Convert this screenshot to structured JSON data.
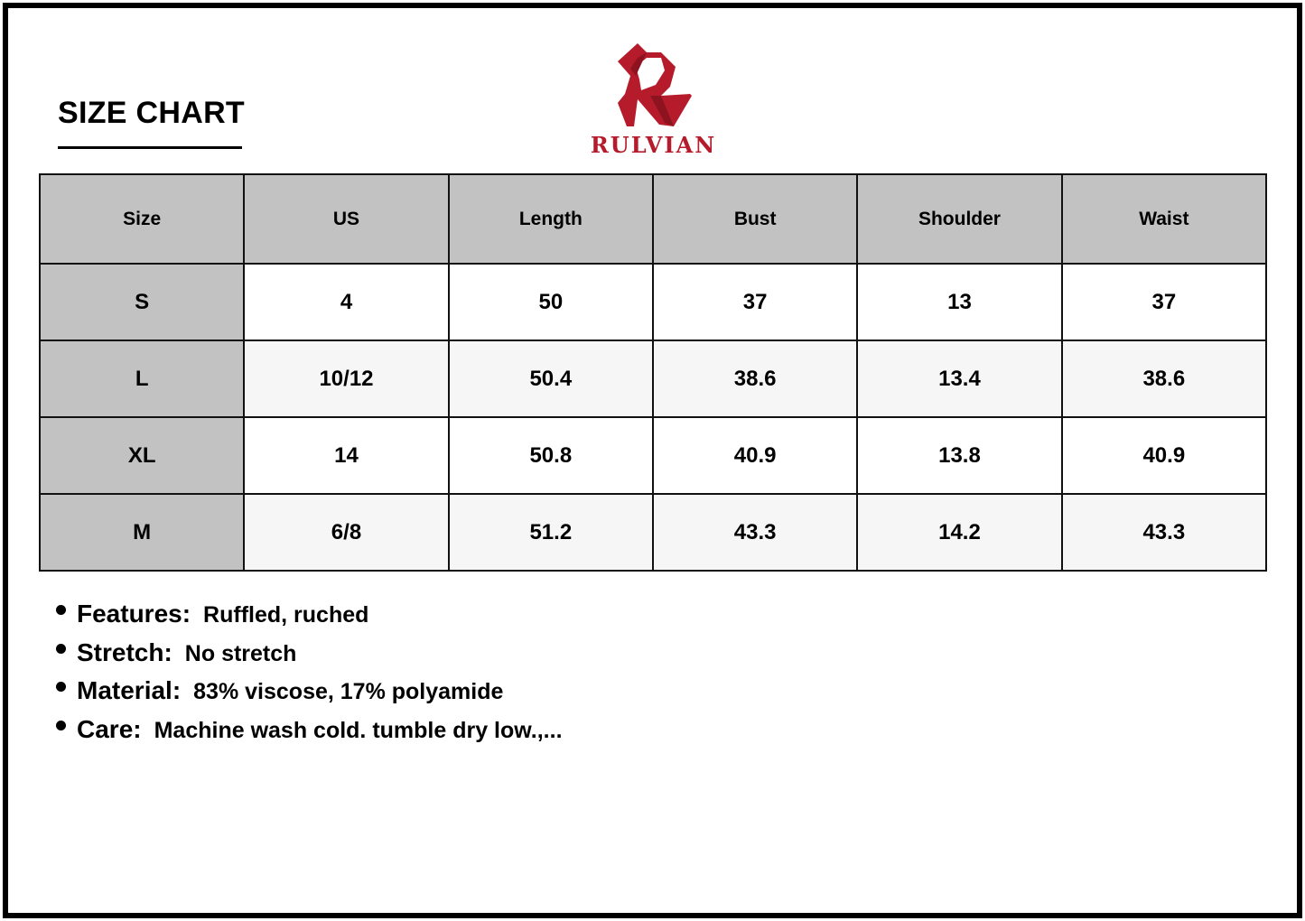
{
  "title": "SIZE CHART",
  "brand": {
    "name": "RULVIAN",
    "color": "#b51b2b"
  },
  "table": {
    "headers": [
      "Size",
      "US",
      "Length",
      "Bust",
      "Shoulder",
      "Waist"
    ],
    "rows": [
      [
        "S",
        "4",
        "50",
        "37",
        "13",
        "37"
      ],
      [
        "L",
        "10/12",
        "50.4",
        "38.6",
        "13.4",
        "38.6"
      ],
      [
        "XL",
        "14",
        "50.8",
        "40.9",
        "13.8",
        "40.9"
      ],
      [
        "M",
        "6/8",
        "51.2",
        "43.3",
        "14.2",
        "43.3"
      ]
    ]
  },
  "notes": [
    {
      "label": "Features:",
      "value": "Ruffled, ruched"
    },
    {
      "label": "Stretch:",
      "value": "No stretch"
    },
    {
      "label": "Material:",
      "value": "83% viscose, 17% polyamide"
    },
    {
      "label": "Care:",
      "value": "Machine wash cold. tumble dry low.,..."
    }
  ]
}
